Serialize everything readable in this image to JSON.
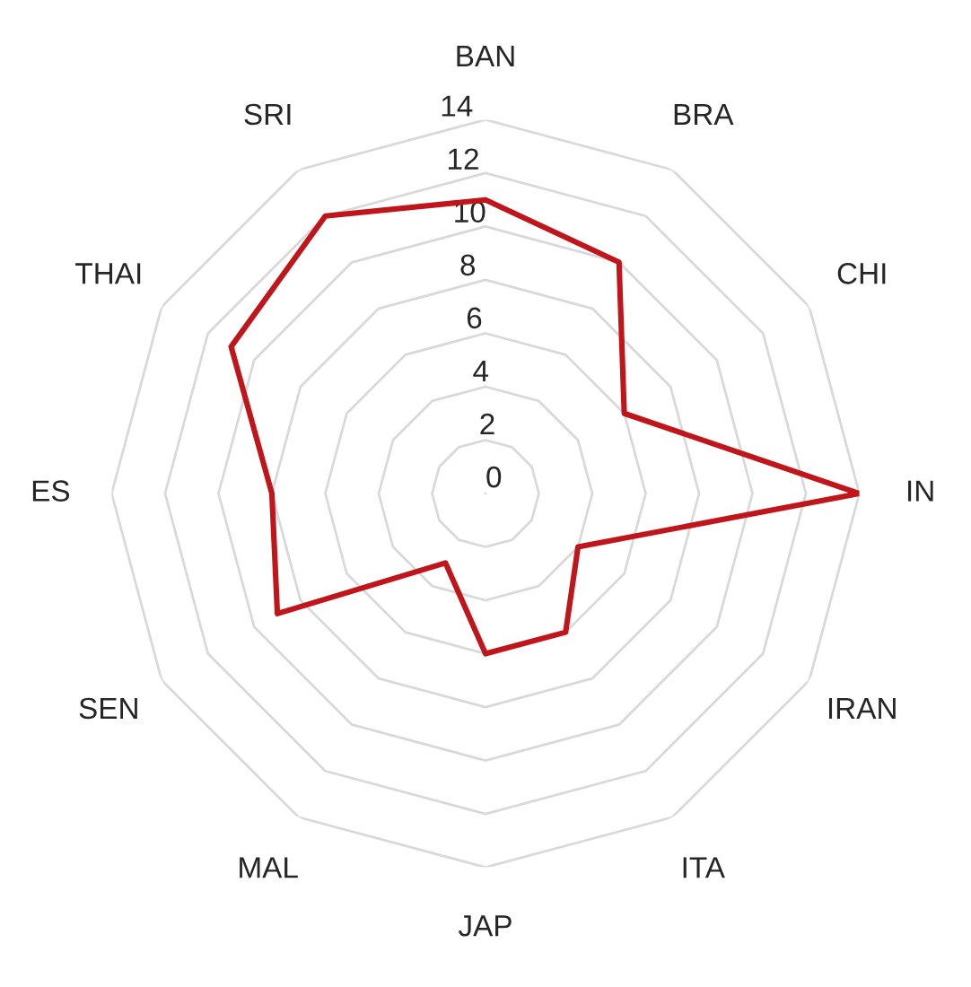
{
  "chart_data": {
    "type": "radar",
    "categories": [
      "BAN",
      "BRA",
      "CHI",
      "IN",
      "IRAN",
      "ITA",
      "JAP",
      "MAL",
      "SEN",
      "ES",
      "THAI",
      "SRI"
    ],
    "series": [
      {
        "color": "#c0151b",
        "values": [
          11,
          10,
          6,
          14,
          4,
          6,
          6,
          3,
          9,
          8,
          11,
          12
        ]
      }
    ],
    "ylim": [
      0,
      14
    ],
    "yticks": [
      0,
      2,
      4,
      6,
      8,
      10,
      12,
      14
    ],
    "grid": true,
    "marker": "none",
    "line_style": "solid"
  }
}
